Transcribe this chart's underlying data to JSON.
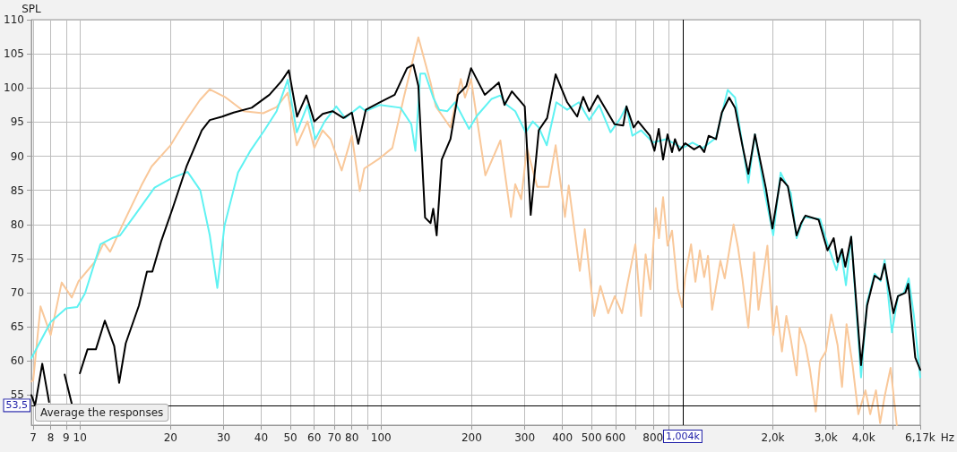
{
  "chart_data": {
    "type": "line",
    "ylabel": "SPL",
    "xlabel": "Hz",
    "log": "x",
    "grid": true,
    "marker": "none",
    "line_style": "solid",
    "xlim": [
      6.9,
      6170
    ],
    "ylim": [
      50.6,
      110
    ],
    "xticks": [
      7,
      8,
      9,
      10,
      20,
      30,
      40,
      50,
      60,
      70,
      80,
      {
        "value": 90,
        "label": null
      },
      100,
      200,
      300,
      400,
      500,
      600,
      {
        "value": 700,
        "label": null
      },
      800,
      {
        "value": 900,
        "label": null
      },
      {
        "value": 2000,
        "label": "2,0k"
      },
      {
        "value": 3000,
        "label": "3,0k"
      },
      {
        "value": 4000,
        "label": "4,0k"
      },
      {
        "value": 5000,
        "label": null
      },
      {
        "value": 6170,
        "label": "6,17k"
      }
    ],
    "yticks": [
      55,
      60,
      65,
      70,
      75,
      80,
      85,
      90,
      95,
      100,
      105,
      110
    ],
    "ref_lines": [
      {
        "axis": "x",
        "value": 1004,
        "label": "1,004k",
        "color": "#000000"
      },
      {
        "axis": "y",
        "value": 53.5,
        "label": "53,5",
        "color": "#000000"
      }
    ],
    "annotations": [
      "Average the responses"
    ],
    "series": [
      {
        "color": "#f9c89a",
        "x": [
          6.9,
          7,
          7.4,
          8,
          8.7,
          9.4,
          9.9,
          11.2,
          12,
          12.6,
          13.8,
          16,
          17.3,
          20,
          22,
          25,
          27,
          30.5,
          35,
          40.6,
          45,
          49,
          52.5,
          57,
          60,
          64,
          68,
          74,
          80,
          85,
          88,
          99,
          109,
          119,
          133,
          146,
          152,
          170,
          184,
          190,
          199,
          222,
          249,
          270,
          279,
          292,
          305,
          330,
          360,
          380,
          408,
          420,
          457,
          475,
          510,
          535,
          568,
          597,
          631,
          660,
          699,
          730,
          756,
          784,
          817,
          837,
          864,
          894,
          925,
          967,
          1000,
          1023,
          1070,
          1106,
          1144,
          1183,
          1218,
          1257,
          1339,
          1384,
          1481,
          1531,
          1584,
          1658,
          1733,
          1792,
          1918,
          2005,
          2058,
          2144,
          2217,
          2294,
          2398,
          2454,
          2566,
          2655,
          2777,
          2870,
          3000,
          3125,
          3282,
          3394,
          3513,
          3683,
          3845,
          4060,
          4210,
          4400,
          4540,
          4700,
          4920,
          5160
        ],
        "values": [
          57,
          57.2,
          68,
          63.8,
          71.5,
          69.3,
          71.7,
          74.5,
          77.3,
          76,
          79.8,
          85.7,
          88.5,
          91.6,
          94.6,
          98.2,
          99.8,
          98.6,
          96.6,
          96.3,
          97.2,
          99.3,
          91.6,
          95.1,
          91.2,
          93.8,
          92.5,
          87.9,
          93,
          84.9,
          88.2,
          89.7,
          91.2,
          98.6,
          107.4,
          100.8,
          97.3,
          94.2,
          101.3,
          98.6,
          101.3,
          87.2,
          92.3,
          81.1,
          85.9,
          83.7,
          91.2,
          85.5,
          85.5,
          91.6,
          81.1,
          85.7,
          73.2,
          79.3,
          66.6,
          71,
          67,
          69.5,
          67,
          71.6,
          77.1,
          66.6,
          75.6,
          70.5,
          82.4,
          78,
          84,
          76.9,
          79.1,
          70.5,
          67.9,
          72.3,
          77.1,
          71.6,
          76.2,
          72.3,
          75.4,
          67.5,
          74.7,
          72.1,
          80,
          76.7,
          72.1,
          64.9,
          75.9,
          67.5,
          76.9,
          63.8,
          68,
          61.4,
          66.6,
          63.2,
          57.9,
          64.9,
          62.3,
          58.8,
          52.6,
          60,
          61.4,
          66.8,
          62.3,
          56.2,
          65.4,
          59.2,
          52.2,
          55.7,
          52.2,
          55.7,
          50.9,
          54.8,
          59,
          50.6
        ]
      },
      {
        "color": "#5ff2f2",
        "x": [
          6.9,
          8,
          9,
          9.8,
          10.4,
          11.7,
          12.8,
          13.6,
          15.3,
          17.7,
          20.2,
          22.8,
          25.1,
          27,
          28.6,
          30.2,
          33.5,
          36.7,
          41,
          45,
          49,
          52.5,
          57,
          60.5,
          65,
          71,
          76,
          85,
          89,
          99,
          116,
          126,
          130,
          135,
          140,
          149,
          156,
          166,
          176,
          196,
          208,
          233,
          249,
          260,
          279,
          302,
          319,
          334,
          355,
          382,
          415,
          454,
          491,
          530,
          578,
          624,
          653,
          683,
          730,
          800,
          884,
          1000,
          1082,
          1170,
          1295,
          1416,
          1498,
          1658,
          1744,
          1873,
          2005,
          2122,
          2294,
          2398,
          2540,
          2870,
          3037,
          3254,
          3366,
          3497,
          3640,
          3925,
          4110,
          4353,
          4560,
          4700,
          4970,
          5205,
          5450,
          5650,
          5880,
          6170
        ],
        "values": [
          60.4,
          65.7,
          67.7,
          67.9,
          69.9,
          77.1,
          78,
          78.4,
          81.5,
          85.4,
          86.8,
          87.7,
          85,
          78.4,
          70.7,
          79.8,
          87.6,
          90.7,
          93.8,
          96.6,
          101.2,
          93.5,
          97.5,
          92.5,
          95.1,
          97.3,
          95.6,
          97.3,
          96.6,
          97.5,
          97.1,
          94.7,
          90.8,
          102.1,
          102.1,
          98.6,
          96.8,
          96.6,
          97.9,
          94,
          95.9,
          98.4,
          98.9,
          97.6,
          96.6,
          93.5,
          95.1,
          94.2,
          91.6,
          97.9,
          96.8,
          97.9,
          95.3,
          97.5,
          93.5,
          95.6,
          97.3,
          93,
          93.8,
          92,
          92.5,
          91.2,
          92,
          91.2,
          92.7,
          99.7,
          98.6,
          86.1,
          93.2,
          85,
          78.4,
          87.6,
          84.6,
          78,
          81.1,
          80.8,
          77.1,
          73.3,
          76.2,
          71.1,
          78.2,
          57.6,
          68.6,
          72.8,
          71.7,
          74.8,
          64.2,
          69.5,
          70,
          72.1,
          66.6,
          57.6
        ]
      },
      {
        "color": "#000000",
        "x": [
          6.9,
          7.1,
          7.5,
          7.9,
          8.3,
          8.9,
          9.4,
          9.7,
          10,
          10.6,
          11.3,
          12.1,
          13,
          13.5,
          14.2,
          15.7,
          16.7,
          17.4,
          18.6,
          20.3,
          22.6,
          25.4,
          27,
          29.7,
          32.4,
          37.2,
          42.6,
          46.7,
          49.4,
          52.6,
          56.5,
          60,
          64,
          69,
          75,
          80,
          84,
          89,
          99,
          111,
          122,
          128,
          133,
          140,
          146,
          149,
          153,
          159,
          170,
          180,
          192,
          199,
          221,
          246,
          257,
          272,
          300,
          314,
          334,
          356,
          380,
          415,
          448,
          469,
          491,
          524,
          596,
          637,
          653,
          690,
          714,
          781,
          809,
          836,
          864,
          894,
          925,
          946,
          978,
          1023,
          1095,
          1144,
          1183,
          1224,
          1295,
          1354,
          1432,
          1498,
          1584,
          1658,
          1744,
          1813,
          1896,
          1993,
          2122,
          2243,
          2398,
          2483,
          2566,
          2838,
          3037,
          3185,
          3282,
          3394,
          3480,
          3640,
          3925,
          4110,
          4353,
          4560,
          4700,
          5026,
          5205,
          5510,
          5630,
          5940,
          6170
        ],
        "values": [
          55,
          53.5,
          59.6,
          54,
          null,
          58,
          53.7,
          null,
          58.2,
          61.7,
          61.7,
          65.9,
          62.2,
          56.8,
          62.6,
          68.1,
          73.1,
          73.1,
          77.5,
          82.3,
          88.5,
          93.8,
          95.3,
          95.8,
          96.4,
          97.1,
          99,
          101,
          102.6,
          95.8,
          98.9,
          95.1,
          96.2,
          96.6,
          95.6,
          96.4,
          91.8,
          96.8,
          97.9,
          99,
          102.9,
          103.4,
          100.3,
          81,
          80.2,
          82.3,
          78.4,
          89.5,
          92.5,
          99,
          100.3,
          102.9,
          99,
          100.8,
          97.5,
          99.5,
          97.3,
          81.4,
          93.8,
          95.6,
          102,
          97.9,
          95.8,
          98.7,
          96.6,
          98.9,
          94.7,
          94.5,
          97.3,
          94.2,
          95.1,
          93,
          90.8,
          94,
          89.5,
          93.2,
          90.6,
          92.5,
          90.8,
          91.9,
          91,
          91.5,
          90.6,
          93,
          92.5,
          96.4,
          98.6,
          97.1,
          91.6,
          87.4,
          93.2,
          89.5,
          85.3,
          79.4,
          86.8,
          85.6,
          78.4,
          80.2,
          81.3,
          80.7,
          76.2,
          78,
          74.5,
          76.4,
          73.8,
          78.2,
          59.4,
          68.1,
          72.5,
          71.9,
          74.2,
          67,
          69.5,
          70,
          71.3,
          60.5,
          58.7
        ]
      }
    ]
  }
}
